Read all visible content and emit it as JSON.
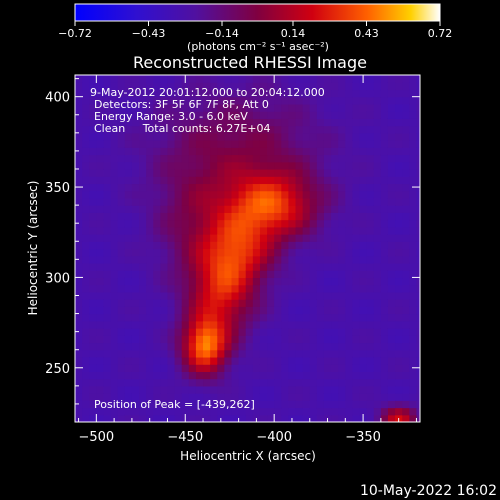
{
  "chart_data": {
    "type": "heatmap",
    "title": "Reconstructed RHESSI Image",
    "xlabel": "Heliocentric X (arcsec)",
    "ylabel": "Heliocentric Y (arcsec)",
    "xlim": [
      -512,
      -318
    ],
    "ylim": [
      220,
      412
    ],
    "x_ticks": [
      -500,
      -450,
      -400,
      -350
    ],
    "y_ticks": [
      250,
      300,
      350,
      400
    ],
    "colorbar": {
      "min": -0.72,
      "max": 0.72,
      "ticks": [
        -0.72,
        -0.43,
        -0.14,
        0.14,
        0.43,
        0.72
      ],
      "unit_text": "(photons cm⁻² s⁻¹ asec⁻²)"
    },
    "annotations": [
      "9-May-2012 20:01:12.000 to 20:04:12.000",
      "Detectors: 3F 5F 6F 7F 8F, Att 0",
      "Energy Range: 3.0 - 6.0 keV",
      "Clean     Total counts: 6.27E+04"
    ],
    "peak": {
      "x": -439,
      "y": 262,
      "label": "Position of Peak = [-439,262]"
    },
    "sources": [
      {
        "x": -439,
        "y": 262,
        "sx": 9,
        "sy": 11,
        "amp": 0.72
      },
      {
        "x": -430,
        "y": 290,
        "sx": 13,
        "sy": 16,
        "amp": 0.48
      },
      {
        "x": -420,
        "y": 315,
        "sx": 14,
        "sy": 14,
        "amp": 0.48
      },
      {
        "x": -402,
        "y": 340,
        "sx": 18,
        "sy": 13,
        "amp": 0.6
      },
      {
        "x": -420,
        "y": 372,
        "sx": 32,
        "sy": 22,
        "amp": 0.26
      },
      {
        "x": -445,
        "y": 330,
        "sx": 16,
        "sy": 22,
        "amp": 0.22
      },
      {
        "x": -330,
        "y": 222,
        "sx": 7,
        "sy": 5,
        "amp": 0.5
      }
    ],
    "background_level": -0.3
  },
  "footer": {
    "timestamp": "10-May-2022 16:02"
  }
}
